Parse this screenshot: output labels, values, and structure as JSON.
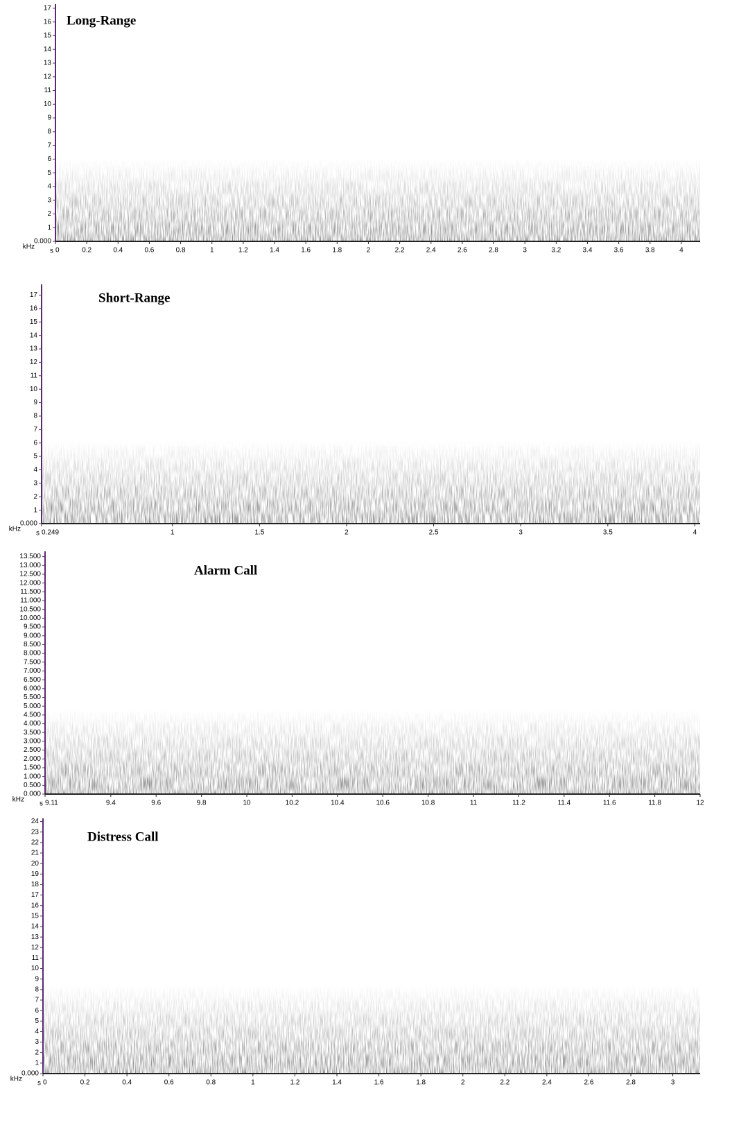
{
  "chart_data": [
    {
      "type": "spectrogram",
      "title": "Long-Range",
      "x_unit": "s",
      "y_unit": "kHz",
      "xlim": [
        0,
        4.12
      ],
      "ylim": [
        0,
        17.3
      ],
      "xticks": [
        0,
        0.2,
        0.4,
        0.6,
        0.8,
        1,
        1.2,
        1.4,
        1.6,
        1.8,
        2,
        2.2,
        2.4,
        2.6,
        2.8,
        3,
        3.2,
        3.4,
        3.6,
        3.8,
        4
      ],
      "yticks": [
        {
          "value": 0,
          "label": "0.000"
        },
        1,
        2,
        3,
        4,
        5,
        6,
        7,
        8,
        9,
        10,
        11,
        12,
        13,
        14,
        15,
        16,
        17
      ]
    },
    {
      "type": "spectrogram",
      "title": "Short-Range",
      "x_unit": "s",
      "y_unit": "kHz",
      "xlim": [
        0.249,
        4.03
      ],
      "ylim": [
        0,
        17.8
      ],
      "xticks": [
        0.249,
        1,
        1.5,
        2,
        2.5,
        3,
        3.5,
        4
      ],
      "yticks": [
        {
          "value": 0,
          "label": "0.000"
        },
        1,
        2,
        3,
        4,
        5,
        6,
        7,
        8,
        9,
        10,
        11,
        12,
        13,
        14,
        15,
        16,
        17
      ]
    },
    {
      "type": "spectrogram",
      "title": "Alarm Call",
      "x_unit": "s",
      "y_unit": "kHz",
      "xlim": [
        9.11,
        12.0
      ],
      "ylim": [
        0,
        13.8
      ],
      "xticks": [
        9.11,
        9.4,
        9.6,
        9.8,
        10,
        10.2,
        10.4,
        10.6,
        10.8,
        11,
        11.2,
        11.4,
        11.6,
        11.8,
        12
      ],
      "yticks": [
        {
          "value": 0,
          "label": "0.000"
        },
        {
          "value": 0.5,
          "label": "0.500"
        },
        {
          "value": 1,
          "label": "1.000"
        },
        {
          "value": 1.5,
          "label": "1.500"
        },
        {
          "value": 2,
          "label": "2.000"
        },
        {
          "value": 2.5,
          "label": "2.500"
        },
        {
          "value": 3,
          "label": "3.000"
        },
        {
          "value": 3.5,
          "label": "3.500"
        },
        {
          "value": 4,
          "label": "4.000"
        },
        {
          "value": 4.5,
          "label": "4.500"
        },
        {
          "value": 5,
          "label": "5.000"
        },
        {
          "value": 5.5,
          "label": "5.500"
        },
        {
          "value": 6,
          "label": "6.000"
        },
        {
          "value": 6.5,
          "label": "6.500"
        },
        {
          "value": 7,
          "label": "7.000"
        },
        {
          "value": 7.5,
          "label": "7.500"
        },
        {
          "value": 8,
          "label": "8.000"
        },
        {
          "value": 8.5,
          "label": "8.500"
        },
        {
          "value": 9,
          "label": "9.000"
        },
        {
          "value": 9.5,
          "label": "9.500"
        },
        {
          "value": 10,
          "label": "10.000"
        },
        {
          "value": 10.5,
          "label": "10.500"
        },
        {
          "value": 11,
          "label": "11.000"
        },
        {
          "value": 11.5,
          "label": "11.500"
        },
        {
          "value": 12,
          "label": "12.000"
        },
        {
          "value": 12.5,
          "label": "12.500"
        },
        {
          "value": 13,
          "label": "13.000"
        },
        {
          "value": 13.5,
          "label": "13.500"
        }
      ]
    },
    {
      "type": "spectrogram",
      "title": "Distress Call",
      "x_unit": "s",
      "y_unit": "kHz",
      "xlim": [
        0,
        3.13
      ],
      "ylim": [
        0,
        24.3
      ],
      "xticks": [
        0,
        0.2,
        0.4,
        0.6,
        0.8,
        1,
        1.2,
        1.4,
        1.6,
        1.8,
        2,
        2.2,
        2.4,
        2.6,
        2.8,
        3
      ],
      "yticks": [
        {
          "value": 0,
          "label": "0.000"
        },
        1,
        2,
        3,
        4,
        5,
        6,
        7,
        8,
        9,
        10,
        11,
        12,
        13,
        14,
        15,
        16,
        17,
        18,
        19,
        20,
        21,
        22,
        23,
        24
      ]
    }
  ]
}
